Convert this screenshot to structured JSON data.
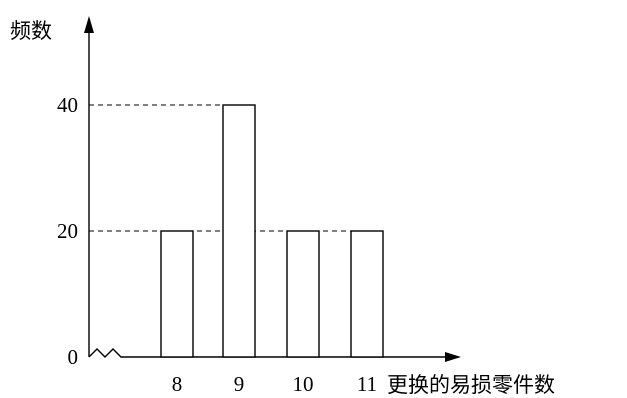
{
  "chart_data": {
    "type": "bar",
    "ylabel": "频数",
    "xlabel": "更换的易损零件数",
    "categories": [
      "8",
      "9",
      "10",
      "11"
    ],
    "values": [
      20,
      40,
      20,
      20
    ],
    "yticks": [
      "0",
      "20",
      "40"
    ],
    "ylim": [
      0,
      58
    ],
    "axis_break_on_x": true,
    "reference_lines": [
      20,
      40
    ],
    "grid": false,
    "legend": "none",
    "colors": {
      "bar_fill": "#ffffff",
      "bar_stroke": "#000000",
      "axis": "#000000"
    }
  }
}
